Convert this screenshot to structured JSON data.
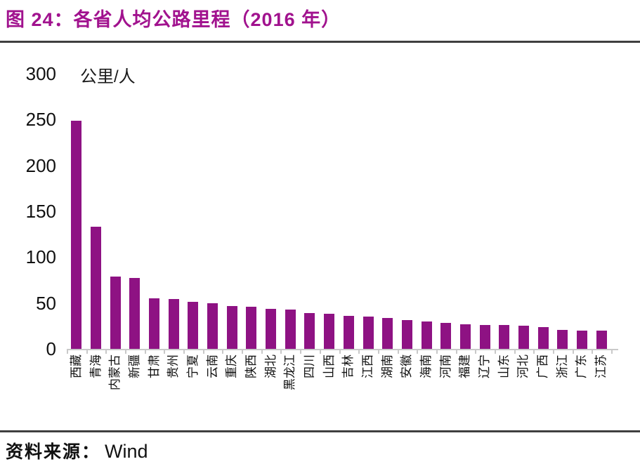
{
  "title": "图 24：各省人均公路里程（2016 年）",
  "source": {
    "prefix": "资料来源：",
    "name": "Wind"
  },
  "colors": {
    "title": "#A1128E",
    "rule": "#3F3F3F",
    "bar": "#8E1283",
    "axis": "#C9C9C9",
    "text": "#111111"
  },
  "chart_data": {
    "type": "bar",
    "title": "各省人均公路里程（2016 年）",
    "unit_label": "公里/人",
    "xlabel": "",
    "ylabel": "公里/人",
    "categories": [
      "西藏",
      "青海",
      "内蒙古",
      "新疆",
      "甘肃",
      "贵州",
      "宁夏",
      "云南",
      "重庆",
      "陕西",
      "湖北",
      "黑龙江",
      "四川",
      "山西",
      "吉林",
      "江西",
      "湖南",
      "安徽",
      "海南",
      "河南",
      "福建",
      "辽宁",
      "山东",
      "河北",
      "广西",
      "浙江",
      "广东",
      "江苏"
    ],
    "values": [
      249,
      133,
      79,
      77,
      55,
      54,
      51,
      50,
      47,
      46,
      44,
      43,
      39,
      38,
      36,
      35,
      34,
      31,
      30,
      28,
      27,
      26,
      26,
      25,
      24,
      21,
      20,
      20
    ],
    "ylim": [
      0,
      300
    ],
    "yticks": [
      0,
      50,
      100,
      150,
      200,
      250,
      300
    ],
    "grid": false,
    "legend_position": "none",
    "bar_color": "#8E1283",
    "x_label_rotation": -90
  }
}
